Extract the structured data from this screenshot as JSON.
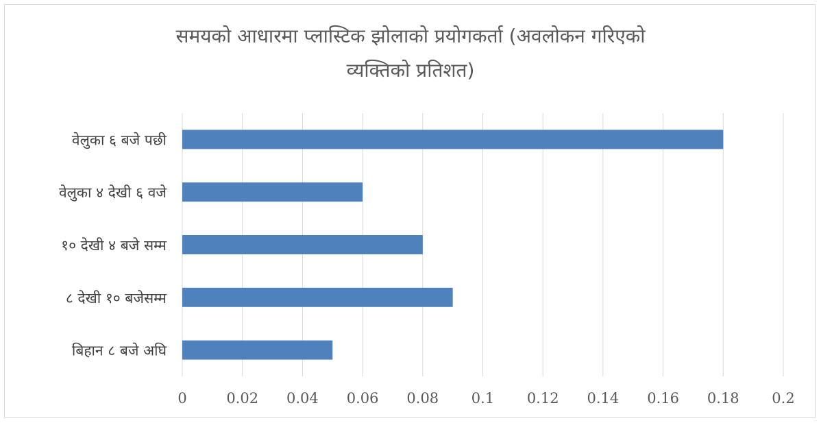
{
  "chart_data": {
    "type": "bar",
    "orientation": "horizontal",
    "title_lines": [
      "समयको आधारमा प्लास्टिक झोलाको प्रयोगकर्ता (अवलोकन गरिएको",
      "व्यक्तिको प्रतिशत)"
    ],
    "categories": [
      "वेलुका ६ बजे पछी",
      "वेलुका ४ देखी ६ वजे",
      "१० देखी ४ बजे सम्म",
      "८ देखी १० बजेसम्म",
      "बिहान ८ बजे अघि"
    ],
    "values": [
      0.18,
      0.06,
      0.08,
      0.09,
      0.05
    ],
    "xlim": [
      0,
      0.2
    ],
    "x_ticks": [
      "0",
      "0.02",
      "0.04",
      "0.06",
      "0.08",
      "0.1",
      "0.12",
      "0.14",
      "0.16",
      "0.18",
      "0.2"
    ],
    "bar_color": "#4f81bd",
    "grid": true,
    "legend": "none"
  }
}
